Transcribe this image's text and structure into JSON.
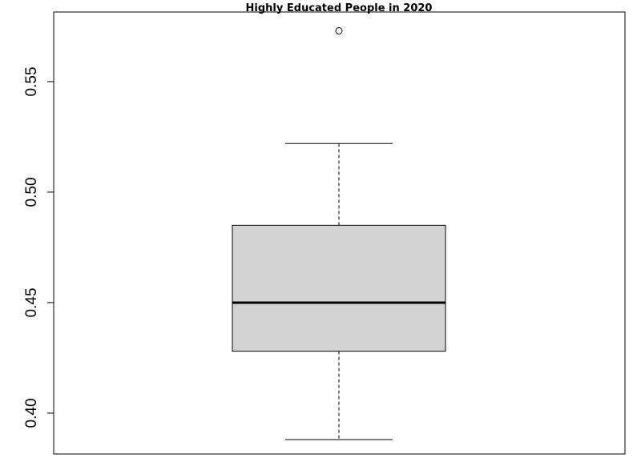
{
  "chart_data": {
    "type": "boxplot",
    "title": "Highly Educated People in 2020",
    "xlabel": "",
    "ylabel": "",
    "ylim": [
      0.3815,
      0.5815
    ],
    "y_ticks": [
      {
        "value": 0.4,
        "label": "0.40"
      },
      {
        "value": 0.45,
        "label": "0.45"
      },
      {
        "value": 0.5,
        "label": "0.50"
      },
      {
        "value": 0.55,
        "label": "0.55"
      }
    ],
    "box": {
      "whisker_low": 0.388,
      "q1": 0.428,
      "median": 0.45,
      "q3": 0.485,
      "whisker_high": 0.522
    },
    "outliers": [
      0.573
    ],
    "colors": {
      "box_fill": "#d3d3d3",
      "stroke": "#000000",
      "background": "#ffffff"
    },
    "grid": false,
    "legend": "none"
  }
}
